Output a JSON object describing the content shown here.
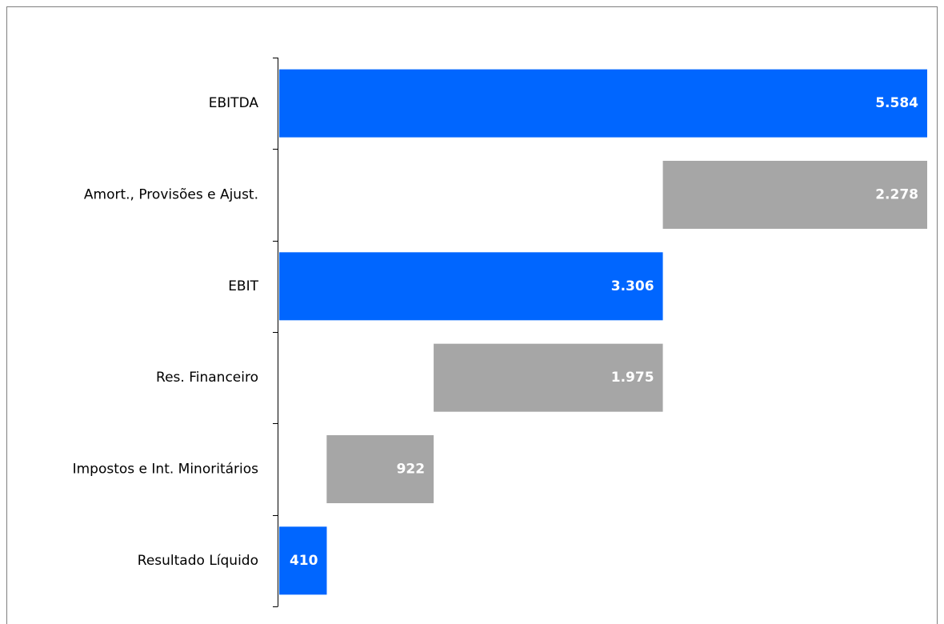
{
  "chart_data": {
    "type": "waterfall",
    "categories": [
      "EBITDA",
      "Amort., Provisões e Ajust.",
      "EBIT",
      "Res. Financeiro",
      "Impostos e Int. Minoritários",
      "Resultado Líquido"
    ],
    "values": [
      5584,
      2278,
      3306,
      1975,
      922,
      410
    ],
    "value_labels": [
      "5.584",
      "2.278",
      "3.306",
      "1.975",
      "922",
      "410"
    ],
    "measure": [
      "total",
      "decrease",
      "total",
      "decrease",
      "decrease",
      "total"
    ],
    "total_color": "#0066ff",
    "decrease_color": "#a6a6a6"
  }
}
